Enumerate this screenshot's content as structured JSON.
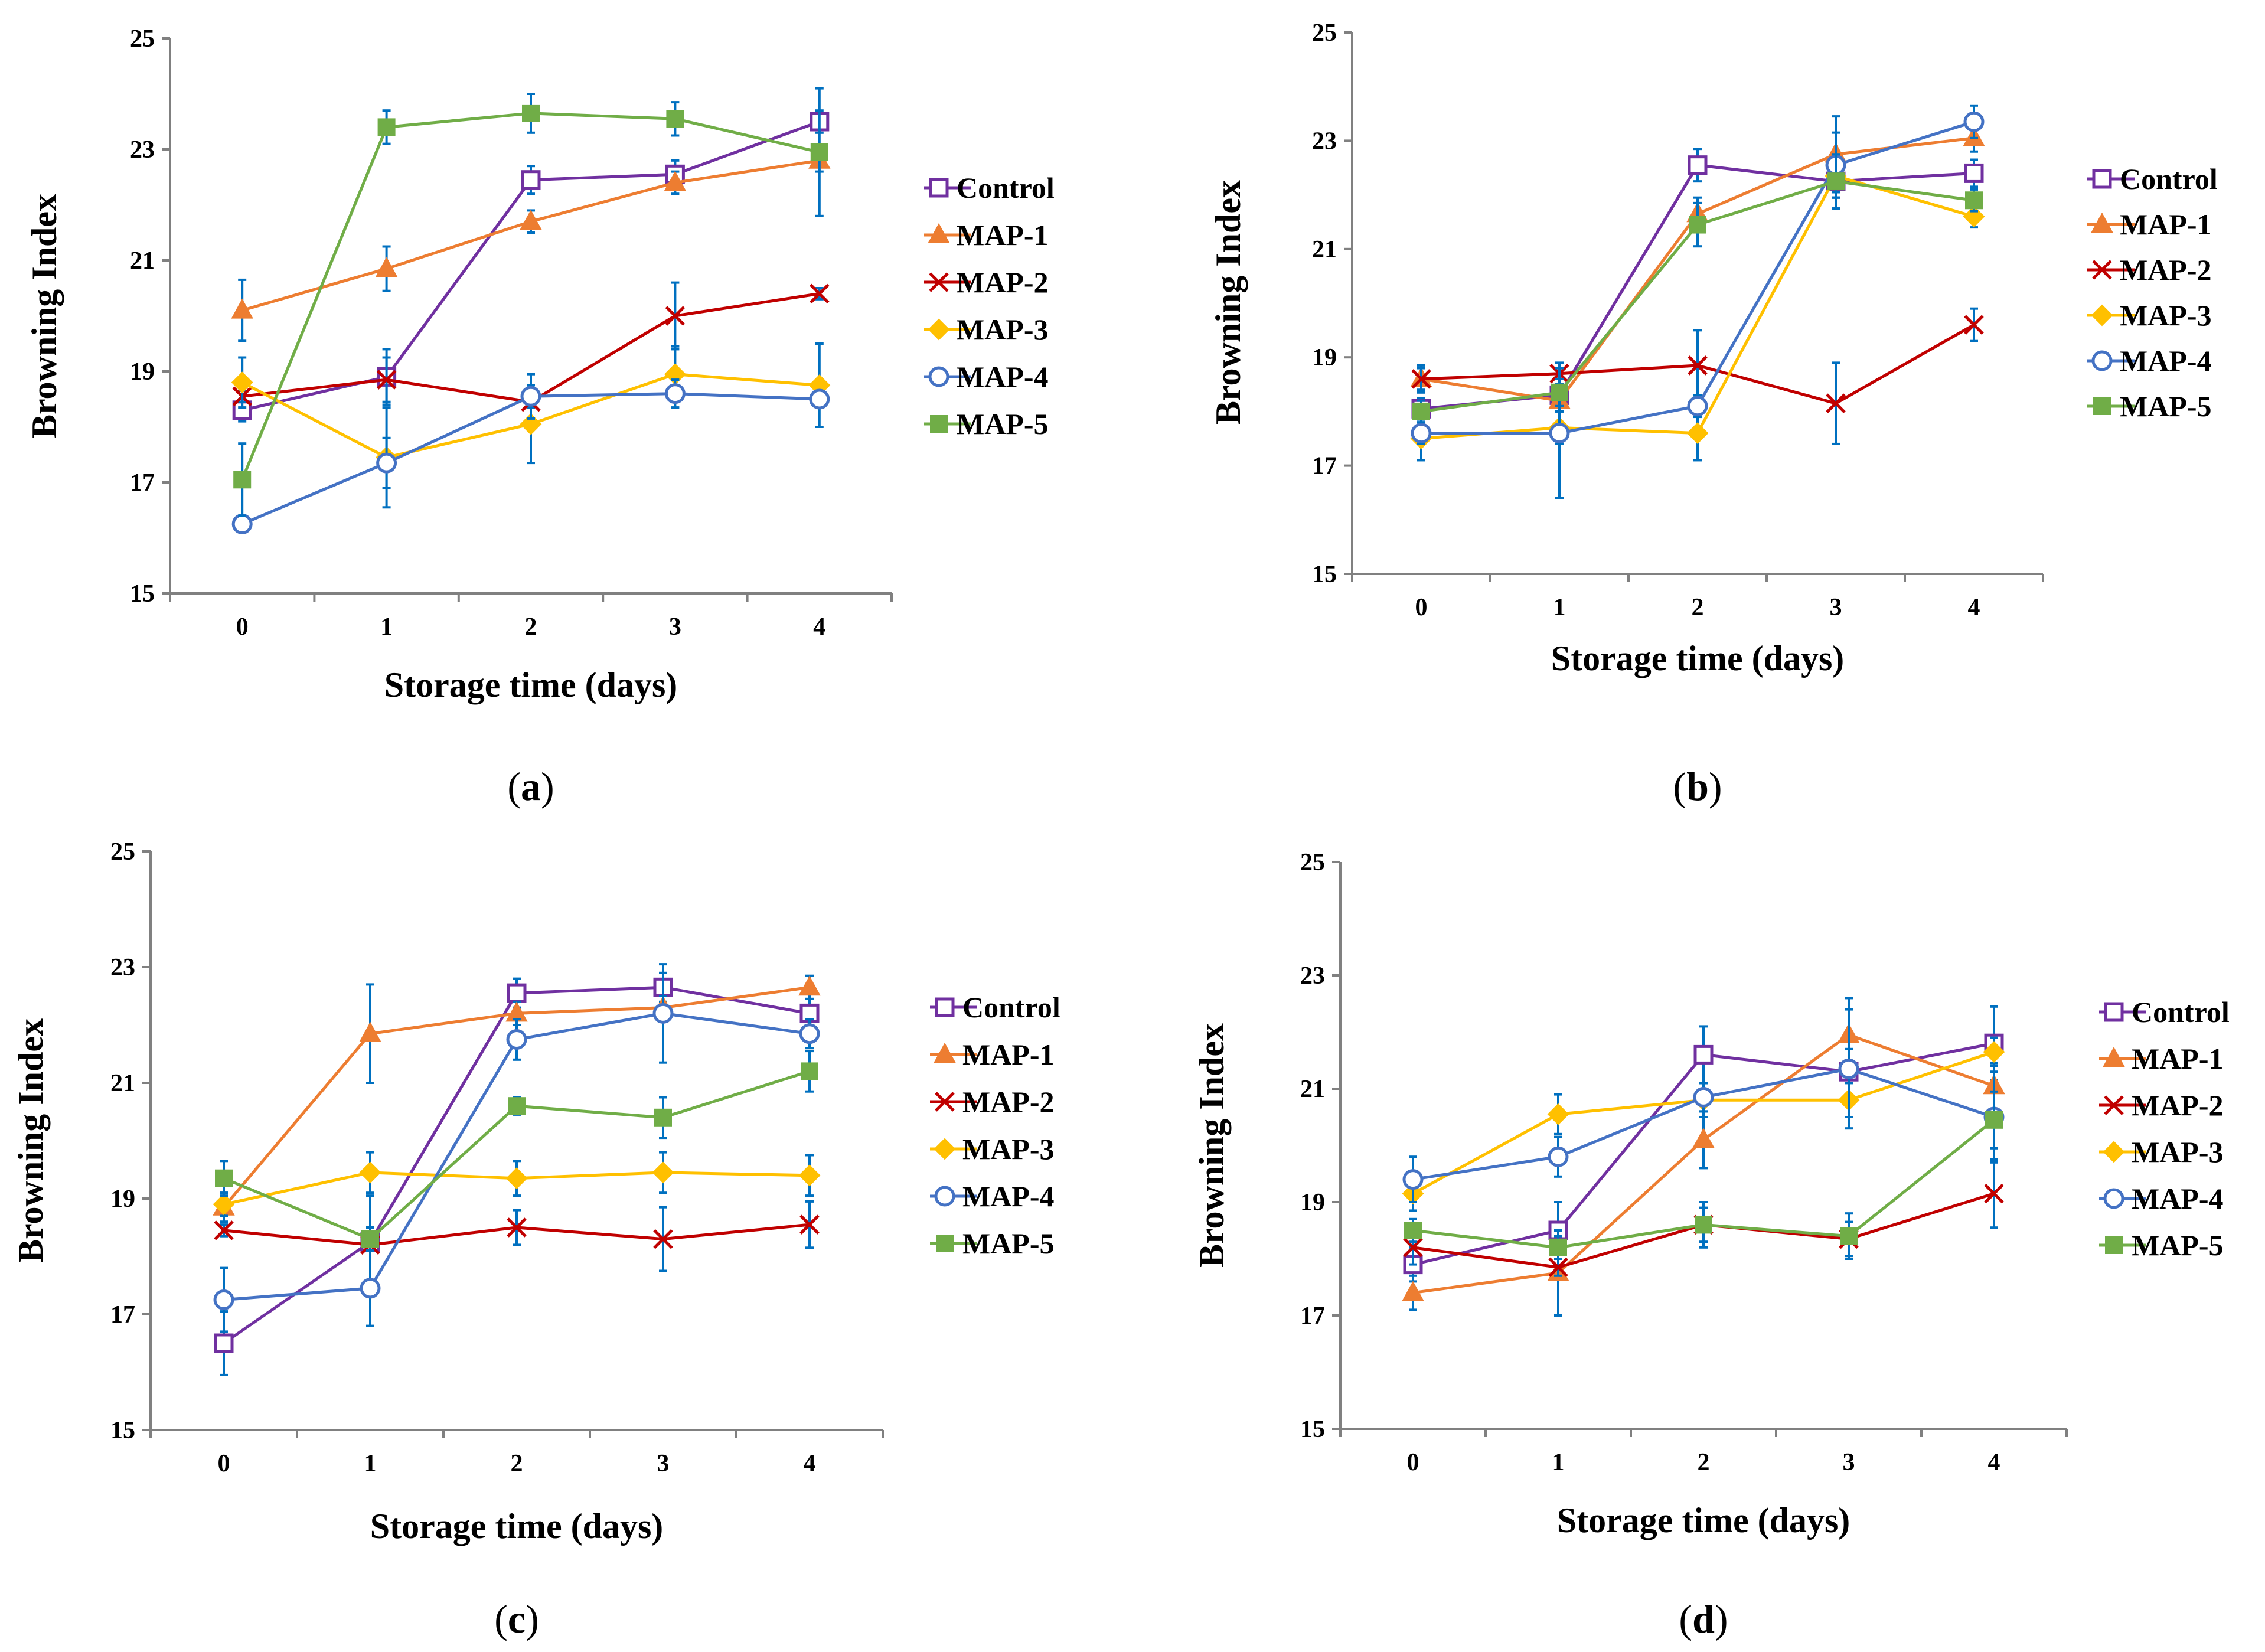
{
  "figure": {
    "styles": {
      "Control": {
        "color": "#7030A0",
        "marker": "open-square"
      },
      "MAP-1": {
        "color": "#ED7D31",
        "marker": "triangle"
      },
      "MAP-2": {
        "color": "#C00000",
        "marker": "cross"
      },
      "MAP-3": {
        "color": "#FFC000",
        "marker": "diamond"
      },
      "MAP-4": {
        "color": "#4472C4",
        "marker": "open-circle"
      },
      "MAP-5": {
        "color": "#70AD47",
        "marker": "filled-square"
      }
    },
    "error_bar_color": "#0070C0"
  },
  "chart_data": [
    {
      "type": "line",
      "panel_label": "a",
      "xlabel": "Storage time (days)",
      "ylabel": "Browning Index",
      "x": [
        0,
        1,
        2,
        3,
        4
      ],
      "x_ticks": [
        "0",
        "1",
        "2",
        "3",
        "4"
      ],
      "y_ticks": [
        "15",
        "17",
        "19",
        "21",
        "23",
        "25"
      ],
      "ylim": [
        15,
        25
      ],
      "legend": "right",
      "series": [
        {
          "name": "Control",
          "values": [
            18.3,
            18.9,
            22.45,
            22.55,
            23.5
          ],
          "errors": [
            0.2,
            0.5,
            0.25,
            0.25,
            0.2
          ]
        },
        {
          "name": "MAP-1",
          "values": [
            20.1,
            20.85,
            21.7,
            22.4,
            22.8
          ],
          "errors": [
            0.55,
            0.4,
            0.2,
            0.2,
            0.2
          ]
        },
        {
          "name": "MAP-2",
          "values": [
            18.55,
            18.85,
            18.45,
            20.0,
            20.4
          ],
          "errors": [
            0.1,
            0.4,
            0.1,
            0.6,
            0.1
          ]
        },
        {
          "name": "MAP-3",
          "values": [
            18.8,
            17.45,
            18.05,
            18.95,
            18.75
          ],
          "errors": [
            0.45,
            0.9,
            0.7,
            0.5,
            0.75
          ]
        },
        {
          "name": "MAP-4",
          "values": [
            16.25,
            17.35,
            18.55,
            18.6,
            18.5
          ],
          "errors": [
            0.05,
            0.45,
            0.4,
            0.25,
            0.05
          ]
        },
        {
          "name": "MAP-5",
          "values": [
            17.05,
            23.4,
            23.65,
            23.55,
            22.95
          ],
          "errors": [
            0.65,
            0.3,
            0.35,
            0.3,
            1.15
          ]
        }
      ]
    },
    {
      "type": "line",
      "panel_label": "b",
      "xlabel": "Storage time (days)",
      "ylabel": "Browning Index",
      "x": [
        0,
        1,
        2,
        3,
        4
      ],
      "x_ticks": [
        "0",
        "1",
        "2",
        "3",
        "4"
      ],
      "y_ticks": [
        "15",
        "17",
        "19",
        "21",
        "23",
        "25"
      ],
      "ylim": [
        15,
        25
      ],
      "legend": "right",
      "series": [
        {
          "name": "Control",
          "values": [
            18.05,
            18.3,
            22.55,
            22.25,
            22.4
          ],
          "errors": [
            0.2,
            0.2,
            0.3,
            0.3,
            0.25
          ]
        },
        {
          "name": "MAP-1",
          "values": [
            18.6,
            18.2,
            21.65,
            22.75,
            23.05
          ],
          "errors": [
            0.2,
            0.2,
            0.3,
            0.7,
            0.25
          ]
        },
        {
          "name": "MAP-2",
          "values": [
            18.6,
            18.7,
            18.85,
            18.15,
            19.6
          ],
          "errors": [
            0.25,
            0.2,
            0.65,
            0.75,
            0.3
          ]
        },
        {
          "name": "MAP-3",
          "values": [
            17.5,
            17.7,
            17.6,
            22.35,
            21.6
          ],
          "errors": [
            0.4,
            0.3,
            0.5,
            0.4,
            0.2
          ]
        },
        {
          "name": "MAP-4",
          "values": [
            17.6,
            17.6,
            18.1,
            22.55,
            23.35
          ],
          "errors": [
            0.2,
            1.2,
            0.2,
            0.6,
            0.3
          ]
        },
        {
          "name": "MAP-5",
          "values": [
            18.0,
            18.35,
            21.45,
            22.25,
            21.9
          ],
          "errors": [
            0.2,
            0.25,
            0.4,
            0.5,
            0.2
          ]
        }
      ]
    },
    {
      "type": "line",
      "panel_label": "c",
      "xlabel": "Storage time (days)",
      "ylabel": "Browning Index",
      "x": [
        0,
        1,
        2,
        3,
        4
      ],
      "x_ticks": [
        "0",
        "1",
        "2",
        "3",
        "4"
      ],
      "y_ticks": [
        "15",
        "17",
        "19",
        "21",
        "23",
        "25"
      ],
      "ylim": [
        15,
        25
      ],
      "legend": "right",
      "series": [
        {
          "name": "Control",
          "values": [
            16.5,
            18.25,
            22.55,
            22.65,
            22.2
          ],
          "errors": [
            0.55,
            0.8,
            0.25,
            0.25,
            0.25
          ]
        },
        {
          "name": "MAP-1",
          "values": [
            18.85,
            21.85,
            22.2,
            22.3,
            22.65
          ],
          "errors": [
            0.25,
            0.85,
            0.2,
            0.2,
            0.2
          ]
        },
        {
          "name": "MAP-2",
          "values": [
            18.45,
            18.2,
            18.5,
            18.3,
            18.55
          ],
          "errors": [
            0.1,
            0.1,
            0.3,
            0.55,
            0.4
          ]
        },
        {
          "name": "MAP-3",
          "values": [
            18.9,
            19.45,
            19.35,
            19.45,
            19.4
          ],
          "errors": [
            0.2,
            0.35,
            0.3,
            0.35,
            0.35
          ]
        },
        {
          "name": "MAP-4",
          "values": [
            17.25,
            17.45,
            21.75,
            22.2,
            21.85
          ],
          "errors": [
            0.55,
            0.65,
            0.35,
            0.85,
            0.25
          ]
        },
        {
          "name": "MAP-5",
          "values": [
            19.35,
            18.3,
            20.6,
            20.4,
            21.2
          ],
          "errors": [
            0.3,
            0.2,
            0.15,
            0.35,
            0.35
          ]
        }
      ]
    },
    {
      "type": "line",
      "panel_label": "d",
      "xlabel": "Storage time (days)",
      "ylabel": "Browning Index",
      "x": [
        0,
        1,
        2,
        3,
        4
      ],
      "x_ticks": [
        "0",
        "1",
        "2",
        "3",
        "4"
      ],
      "y_ticks": [
        "15",
        "17",
        "19",
        "21",
        "23",
        "25"
      ],
      "ylim": [
        15,
        25
      ],
      "legend": "right",
      "series": [
        {
          "name": "Control",
          "values": [
            17.9,
            18.5,
            21.6,
            21.3,
            21.8
          ],
          "errors": [
            0.3,
            0.5,
            0.5,
            0.4,
            0.65
          ]
        },
        {
          "name": "MAP-1",
          "values": [
            17.4,
            17.75,
            20.1,
            21.95,
            21.05
          ],
          "errors": [
            0.3,
            0.75,
            0.5,
            0.65,
            0.4
          ]
        },
        {
          "name": "MAP-2",
          "values": [
            18.2,
            17.85,
            18.6,
            18.35,
            19.15
          ],
          "errors": [
            0.3,
            0.15,
            0.4,
            0.3,
            0.6
          ]
        },
        {
          "name": "MAP-3",
          "values": [
            19.15,
            20.55,
            20.8,
            20.8,
            21.65
          ],
          "errors": [
            0.3,
            0.35,
            0.3,
            0.3,
            0.25
          ]
        },
        {
          "name": "MAP-4",
          "values": [
            19.4,
            19.8,
            20.85,
            21.35,
            20.5
          ],
          "errors": [
            0.4,
            0.35,
            0.25,
            1.05,
            0.8
          ]
        },
        {
          "name": "MAP-5",
          "values": [
            18.5,
            18.2,
            18.6,
            18.4,
            20.45
          ],
          "errors": [
            0.2,
            0.2,
            0.3,
            0.4,
            0.5
          ]
        }
      ]
    }
  ]
}
